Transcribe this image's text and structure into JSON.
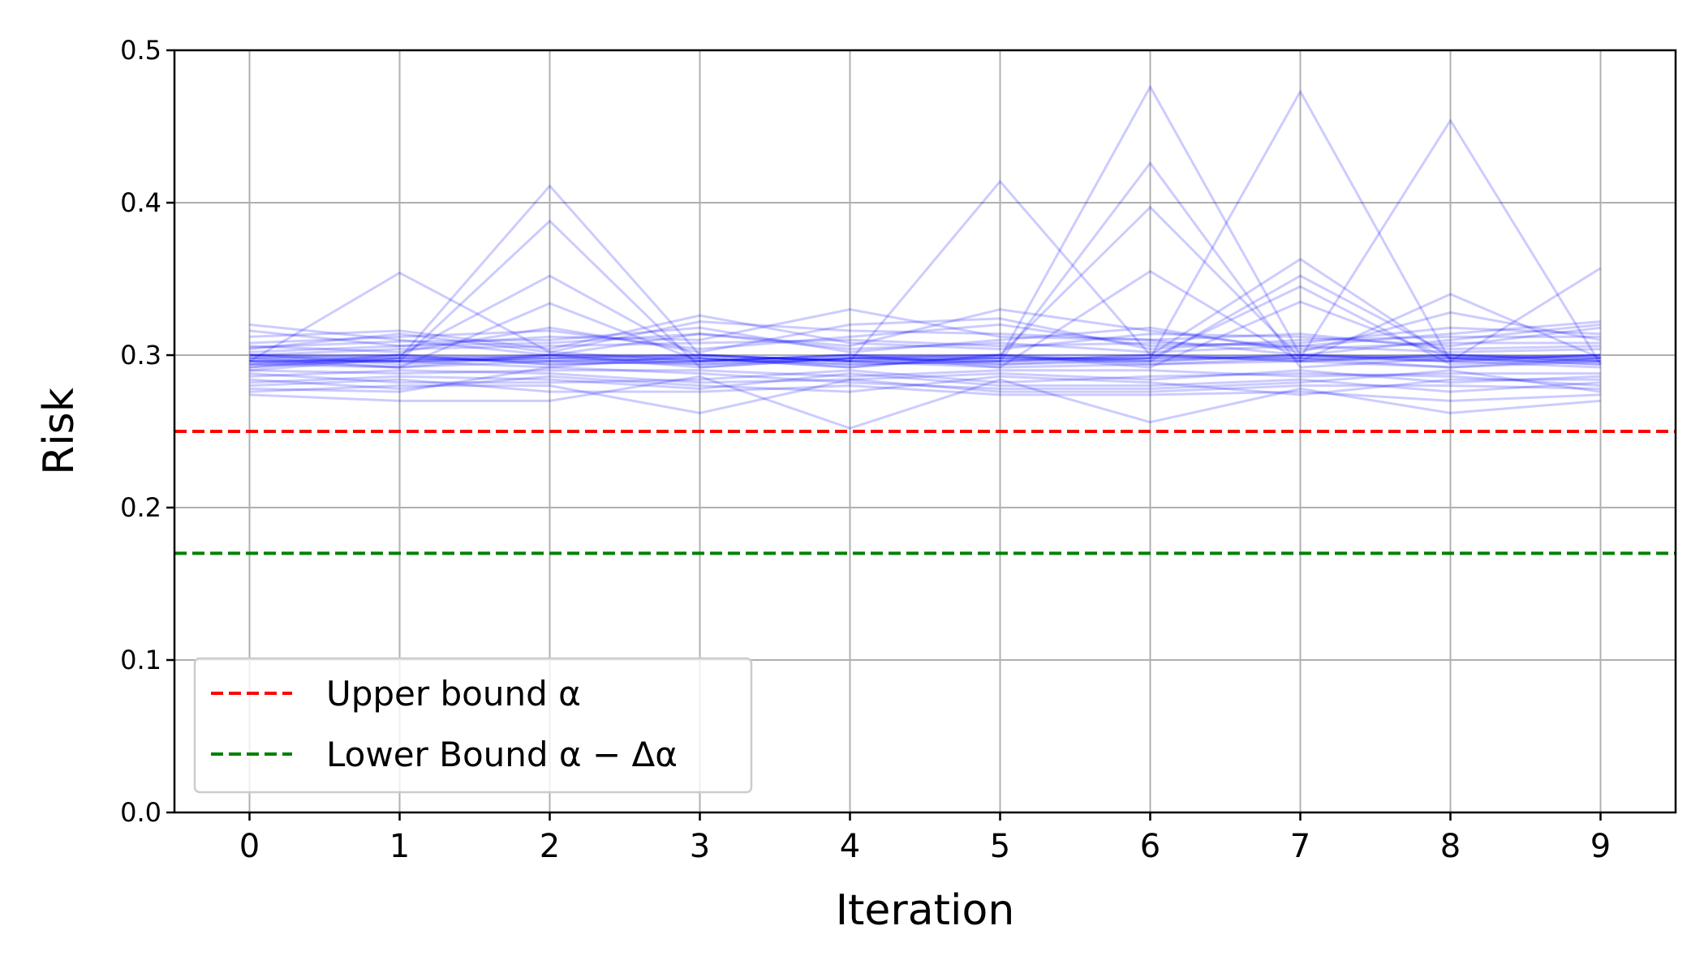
{
  "chart_data": {
    "type": "line",
    "xlabel": "Iteration",
    "ylabel": "Risk",
    "x": [
      0,
      1,
      2,
      3,
      4,
      5,
      6,
      7,
      8,
      9
    ],
    "xlim": [
      -0.5,
      9.5
    ],
    "ylim": [
      0.0,
      0.5
    ],
    "xticks": [
      "0",
      "1",
      "2",
      "3",
      "4",
      "5",
      "6",
      "7",
      "8",
      "9"
    ],
    "yticks": [
      "0.0",
      "0.1",
      "0.2",
      "0.3",
      "0.4",
      "0.5"
    ],
    "yticks_values": [
      0.0,
      0.1,
      0.2,
      0.3,
      0.4,
      0.5
    ],
    "grid": true,
    "legend_position": "lower-left",
    "series_color": "#0000ff",
    "series_opacity": 0.2,
    "series": [
      {
        "values": [
          0.296,
          0.354,
          0.302,
          0.296,
          0.298,
          0.3,
          0.296,
          0.3,
          0.298,
          0.3
        ]
      },
      {
        "values": [
          0.29,
          0.298,
          0.411,
          0.3,
          0.296,
          0.298,
          0.298,
          0.298,
          0.3,
          0.296
        ]
      },
      {
        "values": [
          0.3,
          0.296,
          0.388,
          0.292,
          0.298,
          0.296,
          0.3,
          0.296,
          0.292,
          0.298
        ]
      },
      {
        "values": [
          0.294,
          0.3,
          0.352,
          0.298,
          0.292,
          0.3,
          0.294,
          0.298,
          0.296,
          0.292
        ]
      },
      {
        "values": [
          0.298,
          0.292,
          0.334,
          0.296,
          0.3,
          0.294,
          0.296,
          0.3,
          0.298,
          0.296
        ]
      },
      {
        "values": [
          0.296,
          0.296,
          0.298,
          0.3,
          0.296,
          0.414,
          0.3,
          0.296,
          0.3,
          0.298
        ]
      },
      {
        "values": [
          0.292,
          0.298,
          0.296,
          0.294,
          0.298,
          0.298,
          0.476,
          0.3,
          0.296,
          0.3
        ]
      },
      {
        "values": [
          0.3,
          0.294,
          0.3,
          0.298,
          0.294,
          0.296,
          0.426,
          0.292,
          0.298,
          0.294
        ]
      },
      {
        "values": [
          0.298,
          0.3,
          0.294,
          0.296,
          0.3,
          0.3,
          0.397,
          0.298,
          0.292,
          0.296
        ]
      },
      {
        "values": [
          0.294,
          0.296,
          0.298,
          0.3,
          0.296,
          0.292,
          0.355,
          0.296,
          0.3,
          0.298
        ]
      },
      {
        "values": [
          0.296,
          0.292,
          0.3,
          0.294,
          0.298,
          0.296,
          0.298,
          0.473,
          0.296,
          0.3
        ]
      },
      {
        "values": [
          0.3,
          0.298,
          0.296,
          0.298,
          0.292,
          0.3,
          0.3,
          0.363,
          0.298,
          0.294
        ]
      },
      {
        "values": [
          0.292,
          0.3,
          0.298,
          0.296,
          0.3,
          0.298,
          0.296,
          0.352,
          0.3,
          0.296
        ]
      },
      {
        "values": [
          0.298,
          0.296,
          0.292,
          0.3,
          0.296,
          0.294,
          0.298,
          0.345,
          0.294,
          0.298
        ]
      },
      {
        "values": [
          0.296,
          0.298,
          0.3,
          0.292,
          0.298,
          0.3,
          0.292,
          0.335,
          0.298,
          0.3
        ]
      },
      {
        "values": [
          0.294,
          0.292,
          0.296,
          0.298,
          0.294,
          0.296,
          0.3,
          0.298,
          0.454,
          0.294
        ]
      },
      {
        "values": [
          0.3,
          0.3,
          0.294,
          0.296,
          0.3,
          0.292,
          0.294,
          0.296,
          0.34,
          0.298
        ]
      },
      {
        "values": [
          0.296,
          0.296,
          0.3,
          0.3,
          0.296,
          0.298,
          0.298,
          0.3,
          0.296,
          0.357
        ]
      },
      {
        "values": [
          0.32,
          0.31,
          0.3,
          0.314,
          0.304,
          0.308,
          0.302,
          0.306,
          0.314,
          0.322
        ]
      },
      {
        "values": [
          0.316,
          0.306,
          0.312,
          0.31,
          0.33,
          0.312,
          0.31,
          0.3,
          0.31,
          0.32
        ]
      },
      {
        "values": [
          0.312,
          0.316,
          0.304,
          0.326,
          0.308,
          0.304,
          0.314,
          0.312,
          0.306,
          0.318
        ]
      },
      {
        "values": [
          0.308,
          0.312,
          0.316,
          0.304,
          0.312,
          0.32,
          0.306,
          0.308,
          0.318,
          0.314
        ]
      },
      {
        "values": [
          0.305,
          0.309,
          0.31,
          0.318,
          0.302,
          0.31,
          0.318,
          0.302,
          0.328,
          0.31
        ]
      },
      {
        "values": [
          0.304,
          0.314,
          0.302,
          0.322,
          0.316,
          0.314,
          0.31,
          0.314,
          0.304,
          0.306
        ]
      },
      {
        "values": [
          0.306,
          0.302,
          0.318,
          0.302,
          0.32,
          0.324,
          0.304,
          0.31,
          0.312,
          0.312
        ]
      },
      {
        "values": [
          0.302,
          0.306,
          0.308,
          0.314,
          0.306,
          0.33,
          0.316,
          0.304,
          0.308,
          0.308
        ]
      },
      {
        "values": [
          0.3,
          0.304,
          0.306,
          0.308,
          0.31,
          0.306,
          0.308,
          0.306,
          0.302,
          0.304
        ]
      },
      {
        "values": [
          0.286,
          0.29,
          0.288,
          0.282,
          0.284,
          0.288,
          0.284,
          0.29,
          0.282,
          0.286
        ]
      },
      {
        "values": [
          0.282,
          0.286,
          0.284,
          0.278,
          0.288,
          0.28,
          0.28,
          0.284,
          0.276,
          0.282
        ]
      },
      {
        "values": [
          0.276,
          0.28,
          0.28,
          0.262,
          0.284,
          0.276,
          0.276,
          0.28,
          0.28,
          0.278
        ]
      },
      {
        "values": [
          0.274,
          0.27,
          0.27,
          0.286,
          0.252,
          0.284,
          0.256,
          0.278,
          0.262,
          0.27
        ]
      },
      {
        "values": [
          0.28,
          0.284,
          0.276,
          0.276,
          0.28,
          0.274,
          0.274,
          0.276,
          0.27,
          0.274
        ]
      },
      {
        "values": [
          0.284,
          0.278,
          0.286,
          0.28,
          0.276,
          0.286,
          0.282,
          0.274,
          0.284,
          0.284
        ]
      },
      {
        "values": [
          0.288,
          0.282,
          0.282,
          0.284,
          0.29,
          0.282,
          0.286,
          0.288,
          0.286,
          0.28
        ]
      },
      {
        "values": [
          0.29,
          0.288,
          0.29,
          0.29,
          0.286,
          0.29,
          0.29,
          0.286,
          0.288,
          0.288
        ]
      },
      {
        "values": [
          0.278,
          0.276,
          0.292,
          0.288,
          0.282,
          0.278,
          0.278,
          0.282,
          0.29,
          0.276
        ]
      }
    ],
    "reference_lines": [
      {
        "name": "Upper bound α",
        "y": 0.25,
        "color": "#ff0000",
        "style": "dashed"
      },
      {
        "name": "Lower Bound α − Δα",
        "y": 0.17,
        "color": "#008000",
        "style": "dashed"
      }
    ]
  },
  "legend": {
    "upper_label": "Upper bound α",
    "lower_label": "Lower Bound α − Δα"
  }
}
